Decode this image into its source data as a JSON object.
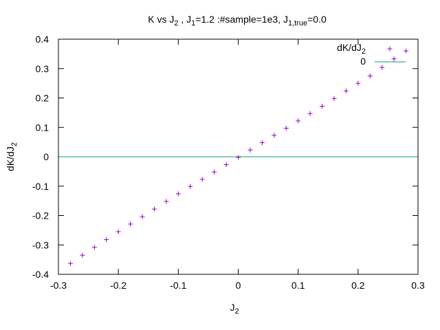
{
  "chart_data": {
    "type": "scatter",
    "title": {
      "p1": "K vs J",
      "p2": "2",
      "p3": " ,  J",
      "p4": "1",
      "p5": "=1.2 :#sample=1e3, J",
      "p6": "1,true",
      "p7": "=0.0"
    },
    "xlabel": {
      "main": "J",
      "sub": "2"
    },
    "ylabel": {
      "main": "dK/dJ",
      "sub": "2"
    },
    "xlim": [
      -0.3,
      0.3
    ],
    "ylim": [
      -0.4,
      0.4
    ],
    "xticks": [
      {
        "v": -0.3,
        "label": "-0.3"
      },
      {
        "v": -0.2,
        "label": "-0.2"
      },
      {
        "v": -0.1,
        "label": "-0.1"
      },
      {
        "v": 0,
        "label": "0"
      },
      {
        "v": 0.1,
        "label": "0.1"
      },
      {
        "v": 0.2,
        "label": "0.2"
      },
      {
        "v": 0.3,
        "label": "0.3"
      }
    ],
    "yticks": [
      {
        "v": -0.4,
        "label": "-0.4"
      },
      {
        "v": -0.3,
        "label": "-0.3"
      },
      {
        "v": -0.2,
        "label": "-0.2"
      },
      {
        "v": -0.1,
        "label": "-0.1"
      },
      {
        "v": 0,
        "label": "0"
      },
      {
        "v": 0.1,
        "label": "0.1"
      },
      {
        "v": 0.2,
        "label": "0.2"
      },
      {
        "v": 0.3,
        "label": "0.3"
      },
      {
        "v": 0.4,
        "label": "0.4"
      }
    ],
    "legend_placement": "top-right",
    "series": [
      {
        "name": "dK/dJ2",
        "legend_main": "dK/dJ",
        "legend_sub": "2",
        "marker": "plus",
        "color": "#9400d3",
        "x": [
          -0.28,
          -0.26,
          -0.24,
          -0.22,
          -0.2,
          -0.18,
          -0.16,
          -0.14,
          -0.12,
          -0.1,
          -0.08,
          -0.06,
          -0.04,
          -0.02,
          0.0,
          0.02,
          0.04,
          0.06,
          0.08,
          0.1,
          0.12,
          0.14,
          0.16,
          0.18,
          0.2,
          0.22,
          0.24,
          0.26,
          0.28
        ],
        "y": [
          -0.363,
          -0.335,
          -0.308,
          -0.282,
          -0.255,
          -0.229,
          -0.204,
          -0.178,
          -0.152,
          -0.126,
          -0.101,
          -0.077,
          -0.052,
          -0.027,
          -0.002,
          0.023,
          0.048,
          0.073,
          0.097,
          0.122,
          0.147,
          0.172,
          0.198,
          0.224,
          0.25,
          0.275,
          0.304,
          0.333,
          0.36
        ]
      },
      {
        "name": "0",
        "legend_main": "0",
        "marker": "line",
        "color": "#009e73",
        "y_const": 0
      }
    ]
  }
}
